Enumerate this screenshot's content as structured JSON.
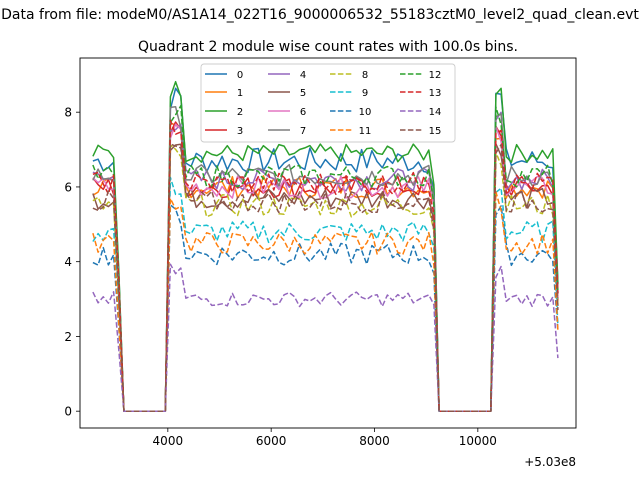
{
  "chart_data": {
    "type": "line",
    "suptitle": "Data from file: modeM0/AS1A14_022T16_9000006532_55183cztM0_level2_quad_clean.evt",
    "title": "Quadrant 2 module wise count rates with 100.0s bins.",
    "xlabel": "",
    "ylabel": "",
    "x_offset_label": "+5.03e8",
    "xlim": [
      2300,
      11900
    ],
    "ylim": [
      -0.45,
      9.45
    ],
    "x_ticks": [
      4000,
      6000,
      8000,
      10000
    ],
    "x_tick_labels": [
      "4000",
      "6000",
      "8000",
      "10000"
    ],
    "y_ticks": [
      0,
      2,
      4,
      6,
      8
    ],
    "y_tick_labels": [
      "0",
      "2",
      "4",
      "6",
      "8"
    ],
    "legend": {
      "placement": "upper-center",
      "columns": 4
    },
    "series": [
      {
        "name": "0",
        "color": "#1f77b4",
        "style": "solid",
        "level": 6.7,
        "noise": 0.35
      },
      {
        "name": "1",
        "color": "#ff7f0e",
        "style": "solid",
        "level": 6.0,
        "noise": 0.3
      },
      {
        "name": "2",
        "color": "#2ca02c",
        "style": "solid",
        "level": 6.9,
        "noise": 0.25
      },
      {
        "name": "3",
        "color": "#d62728",
        "style": "solid",
        "level": 6.0,
        "noise": 0.3
      },
      {
        "name": "4",
        "color": "#9467bd",
        "style": "solid",
        "level": 6.2,
        "noise": 0.3
      },
      {
        "name": "5",
        "color": "#8c564b",
        "style": "solid",
        "level": 5.7,
        "noise": 0.3
      },
      {
        "name": "6",
        "color": "#e377c2",
        "style": "solid",
        "level": 6.0,
        "noise": 0.3
      },
      {
        "name": "7",
        "color": "#7f7f7f",
        "style": "solid",
        "level": 6.3,
        "noise": 0.3
      },
      {
        "name": "8",
        "color": "#bcbd22",
        "style": "dashed",
        "level": 5.5,
        "noise": 0.3
      },
      {
        "name": "9",
        "color": "#17becf",
        "style": "dashed",
        "level": 4.8,
        "noise": 0.3
      },
      {
        "name": "10",
        "color": "#1f77b4",
        "style": "dashed",
        "level": 4.2,
        "noise": 0.3
      },
      {
        "name": "11",
        "color": "#ff7f0e",
        "style": "dashed",
        "level": 4.5,
        "noise": 0.3
      },
      {
        "name": "12",
        "color": "#2ca02c",
        "style": "dashed",
        "level": 6.3,
        "noise": 0.3
      },
      {
        "name": "13",
        "color": "#d62728",
        "style": "dashed",
        "level": 6.1,
        "noise": 0.3
      },
      {
        "name": "14",
        "color": "#9467bd",
        "style": "dashed",
        "level": 3.0,
        "noise": 0.2
      },
      {
        "name": "15",
        "color": "#8c564b",
        "style": "dashed",
        "level": 5.6,
        "noise": 0.3
      }
    ],
    "time_profile": {
      "x_start": 2550,
      "x_end": 11550,
      "bin_width": 100,
      "zero_intervals": [
        [
          3150,
          3950
        ],
        [
          9250,
          10250
        ]
      ],
      "peak_times": [
        4150,
        10350
      ],
      "peak_factor": 1.25
    }
  }
}
